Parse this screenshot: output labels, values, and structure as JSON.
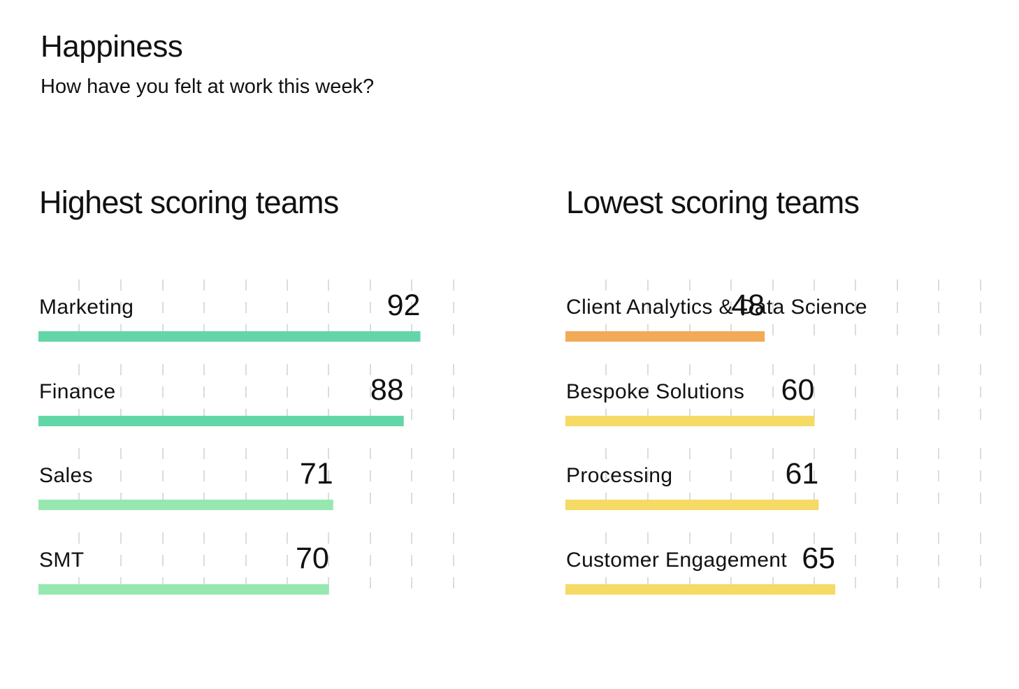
{
  "header": {
    "title": "Happiness",
    "subtitle": "How have you felt at work this week?"
  },
  "chart_data": [
    {
      "type": "bar",
      "orientation": "horizontal",
      "title": "Highest scoring teams",
      "categories": [
        "Marketing",
        "Finance",
        "Sales",
        "SMT"
      ],
      "values": [
        92,
        88,
        71,
        70
      ],
      "colors": [
        "#63d6a8",
        "#63d6a8",
        "#96e8b0",
        "#96e8b0"
      ],
      "xlim": [
        0,
        100
      ],
      "grid": true
    },
    {
      "type": "bar",
      "orientation": "horizontal",
      "title": "Lowest scoring teams",
      "categories": [
        "Client Analytics & Data Science",
        "Bespoke Solutions",
        "Processing",
        "Customer Engagement"
      ],
      "values": [
        48,
        60,
        61,
        65
      ],
      "colors": [
        "#f2aa58",
        "#f5da66",
        "#f5da66",
        "#f5da66"
      ],
      "xlim": [
        0,
        100
      ],
      "grid": true
    }
  ]
}
